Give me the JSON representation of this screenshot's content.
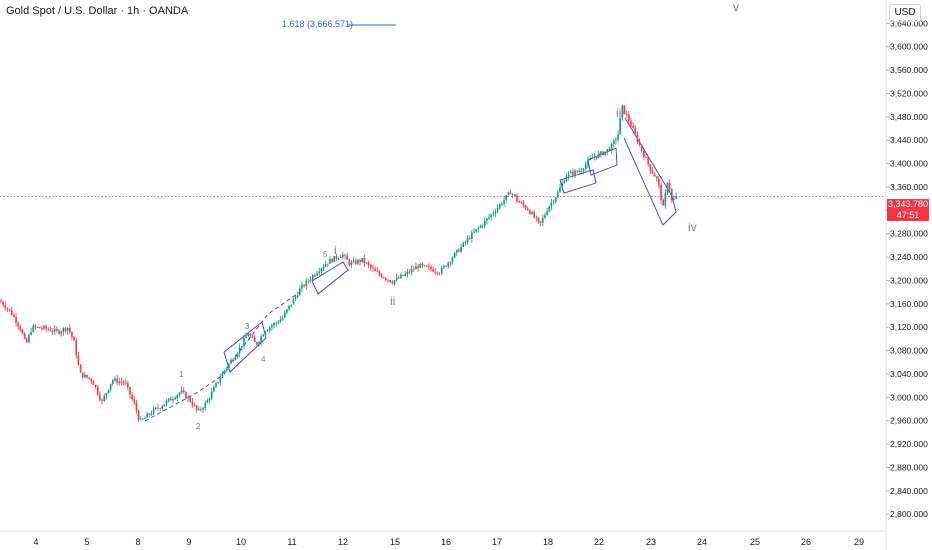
{
  "header": {
    "title": "Gold Spot / U.S. Dollar · 1h · OANDA",
    "currency": "USD"
  },
  "fib": {
    "label": "1.618 (3,666.571)"
  },
  "last_price": {
    "value": "3,343.780",
    "countdown": "47:51"
  },
  "waves": {
    "i": "i",
    "ii": "ii",
    "iii": "iii",
    "iv": "iv",
    "v": "v",
    "w1": "1",
    "w2": "2",
    "w3": "3",
    "w4": "4",
    "w5": "5"
  },
  "colors": {
    "up": "#089981",
    "down": "#f23645",
    "channel": "#3b36c9",
    "fib_line": "#2962ff"
  },
  "chart_data": {
    "type": "candlestick",
    "title": "Gold Spot / U.S. Dollar · 1h · OANDA",
    "xlabel": "",
    "ylabel": "",
    "x_ticks": [
      "4",
      "5",
      "8",
      "9",
      "10",
      "11",
      "12",
      "15",
      "16",
      "17",
      "18",
      "22",
      "23",
      "24",
      "25",
      "26",
      "29"
    ],
    "y_ticks": [
      "3,640.000",
      "3,600.000",
      "3,560.000",
      "3,520.000",
      "3,480.000",
      "3,440.000",
      "3,400.000",
      "3,360.000",
      "3,320.000",
      "3,280.000",
      "3,240.000",
      "3,200.000",
      "3,160.000",
      "3,120.000",
      "3,080.000",
      "3,040.000",
      "3,000.000",
      "2,960.000",
      "2,920.000",
      "2,880.000",
      "2,840.000",
      "2,800.000"
    ],
    "ylim": [
      2785,
      3680
    ],
    "path_points": [
      {
        "x": 0,
        "y": 3165
      },
      {
        "x": 10,
        "y": 3148
      },
      {
        "x": 20,
        "y": 3120
      },
      {
        "x": 26,
        "y": 3090
      },
      {
        "x": 32,
        "y": 3120
      },
      {
        "x": 45,
        "y": 3118
      },
      {
        "x": 58,
        "y": 3112
      },
      {
        "x": 68,
        "y": 3120
      },
      {
        "x": 74,
        "y": 3095
      },
      {
        "x": 80,
        "y": 3040
      },
      {
        "x": 92,
        "y": 3030
      },
      {
        "x": 102,
        "y": 2992
      },
      {
        "x": 112,
        "y": 3030
      },
      {
        "x": 125,
        "y": 3025
      },
      {
        "x": 135,
        "y": 2985
      },
      {
        "x": 140,
        "y": 2958
      },
      {
        "x": 152,
        "y": 2975
      },
      {
        "x": 165,
        "y": 2990
      },
      {
        "x": 181,
        "y": 3010
      },
      {
        "x": 190,
        "y": 2995
      },
      {
        "x": 198,
        "y": 2975
      },
      {
        "x": 206,
        "y": 2990
      },
      {
        "x": 222,
        "y": 3040
      },
      {
        "x": 240,
        "y": 3085
      },
      {
        "x": 248,
        "y": 3110
      },
      {
        "x": 256,
        "y": 3090
      },
      {
        "x": 265,
        "y": 3115
      },
      {
        "x": 282,
        "y": 3135
      },
      {
        "x": 300,
        "y": 3185
      },
      {
        "x": 318,
        "y": 3218
      },
      {
        "x": 328,
        "y": 3232
      },
      {
        "x": 342,
        "y": 3245
      },
      {
        "x": 350,
        "y": 3228
      },
      {
        "x": 362,
        "y": 3235
      },
      {
        "x": 375,
        "y": 3215
      },
      {
        "x": 392,
        "y": 3198
      },
      {
        "x": 405,
        "y": 3210
      },
      {
        "x": 418,
        "y": 3225
      },
      {
        "x": 430,
        "y": 3220
      },
      {
        "x": 440,
        "y": 3215
      },
      {
        "x": 455,
        "y": 3245
      },
      {
        "x": 470,
        "y": 3275
      },
      {
        "x": 490,
        "y": 3310
      },
      {
        "x": 505,
        "y": 3340
      },
      {
        "x": 511,
        "y": 3352
      },
      {
        "x": 518,
        "y": 3335
      },
      {
        "x": 528,
        "y": 3322
      },
      {
        "x": 540,
        "y": 3295
      },
      {
        "x": 548,
        "y": 3325
      },
      {
        "x": 558,
        "y": 3350
      },
      {
        "x": 566,
        "y": 3380
      },
      {
        "x": 580,
        "y": 3388
      },
      {
        "x": 592,
        "y": 3410
      },
      {
        "x": 605,
        "y": 3420
      },
      {
        "x": 612,
        "y": 3430
      },
      {
        "x": 618,
        "y": 3450
      },
      {
        "x": 622,
        "y": 3497
      },
      {
        "x": 630,
        "y": 3470
      },
      {
        "x": 640,
        "y": 3430
      },
      {
        "x": 650,
        "y": 3392
      },
      {
        "x": 658,
        "y": 3370
      },
      {
        "x": 663,
        "y": 3322
      },
      {
        "x": 668,
        "y": 3375
      },
      {
        "x": 672,
        "y": 3335
      },
      {
        "x": 677,
        "y": 3344
      }
    ]
  }
}
